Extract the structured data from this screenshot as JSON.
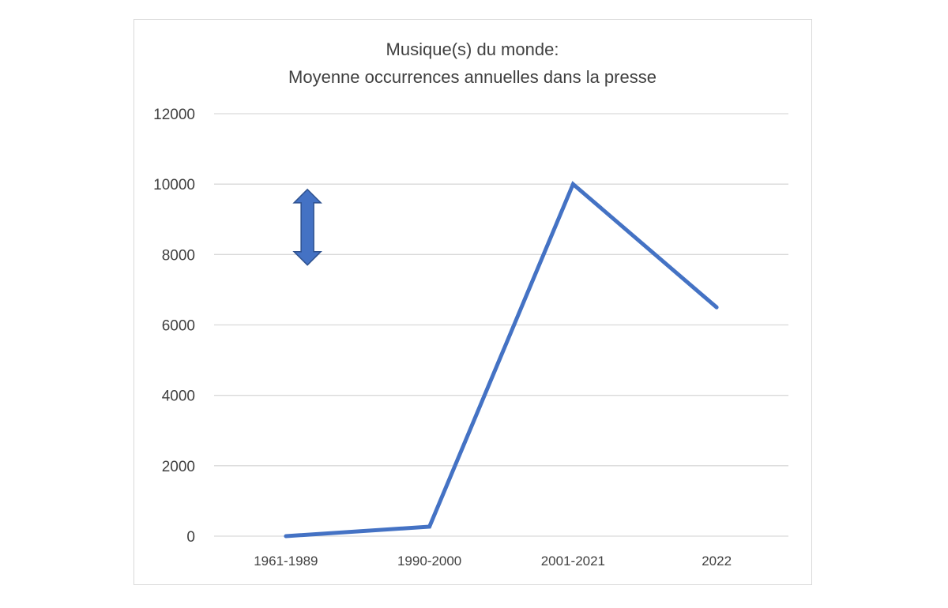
{
  "chart_data": {
    "type": "line",
    "title_lines": [
      "Musique(s) du monde:",
      "Moyenne occurrences annuelles dans la presse"
    ],
    "categories": [
      "1961-1989",
      "1990-2000",
      "2001-2021",
      "2022"
    ],
    "series": [
      {
        "values": [
          0,
          270,
          10000,
          6500
        ],
        "color": "#4472c4"
      }
    ],
    "ylim": [
      0,
      12000
    ],
    "yticks": [
      0,
      2000,
      4000,
      6000,
      8000,
      10000,
      12000
    ],
    "ytick_labels": [
      "0",
      "2000",
      "4000",
      "6000",
      "8000",
      "10000",
      "12000"
    ],
    "grid": true,
    "legend": "none",
    "annotations": [
      {
        "type": "double-arrow-vertical",
        "color": "#4472c4",
        "icon": "double-arrow-icon",
        "category_position": 0.65,
        "y_range": [
          7700,
          9850
        ]
      }
    ]
  }
}
